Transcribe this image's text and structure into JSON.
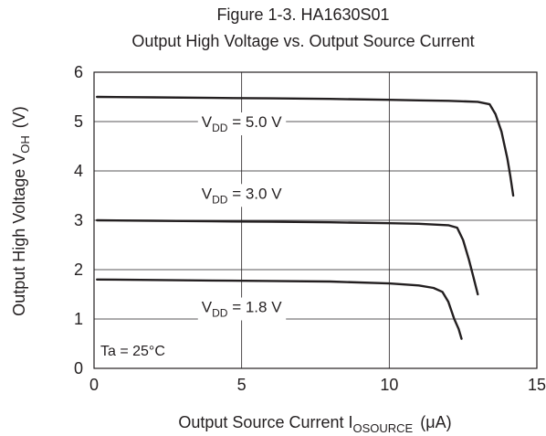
{
  "chart_data": {
    "type": "line",
    "title_line1": "Figure 1-3. HA1630S01",
    "title_line2": "Output High Voltage vs. Output Source Current",
    "xlabel": {
      "main": "Output Source Current  I",
      "sub": "OSOURCE",
      "unit": "(μA)"
    },
    "ylabel": {
      "main": "Output High Voltage  V",
      "sub": "OH",
      "unit": "(V)"
    },
    "xlim": [
      0,
      15
    ],
    "ylim": [
      0,
      6
    ],
    "xticks": [
      "0",
      "5",
      "10",
      "15"
    ],
    "yticks": [
      "0",
      "1",
      "2",
      "3",
      "4",
      "5",
      "6"
    ],
    "grid": true,
    "annotation": "Ta = 25°C",
    "series": [
      {
        "name": "V_DD = 5.0 V",
        "label_main": "V",
        "label_sub": "DD",
        "label_rest": " = 5.0 V",
        "label_at": [
          5.0,
          5.0
        ],
        "x": [
          0.1,
          2,
          4,
          6,
          8,
          10,
          11,
          12,
          13,
          13.4,
          13.6,
          13.8,
          14.0,
          14.1,
          14.2
        ],
        "y": [
          5.5,
          5.49,
          5.48,
          5.47,
          5.46,
          5.44,
          5.43,
          5.42,
          5.4,
          5.35,
          5.15,
          4.8,
          4.25,
          3.9,
          3.5
        ]
      },
      {
        "name": "V_DD = 3.0 V",
        "label_main": "V",
        "label_sub": "DD",
        "label_rest": " = 3.0 V",
        "label_at": [
          5.0,
          3.55
        ],
        "x": [
          0.1,
          2,
          4,
          6,
          8,
          10,
          11,
          12,
          12.3,
          12.5,
          12.7,
          12.85,
          13.0
        ],
        "y": [
          3.0,
          2.99,
          2.98,
          2.97,
          2.96,
          2.94,
          2.93,
          2.9,
          2.85,
          2.6,
          2.2,
          1.85,
          1.5
        ]
      },
      {
        "name": "V_DD = 1.8 V",
        "label_main": "V",
        "label_sub": "DD",
        "label_rest": " = 1.8 V",
        "label_at": [
          5.0,
          1.25
        ],
        "x": [
          0.1,
          2,
          4,
          6,
          8,
          10,
          11,
          11.5,
          11.8,
          12.0,
          12.2,
          12.35,
          12.45
        ],
        "y": [
          1.8,
          1.79,
          1.78,
          1.77,
          1.76,
          1.72,
          1.68,
          1.63,
          1.55,
          1.35,
          1.0,
          0.8,
          0.6
        ]
      }
    ]
  }
}
